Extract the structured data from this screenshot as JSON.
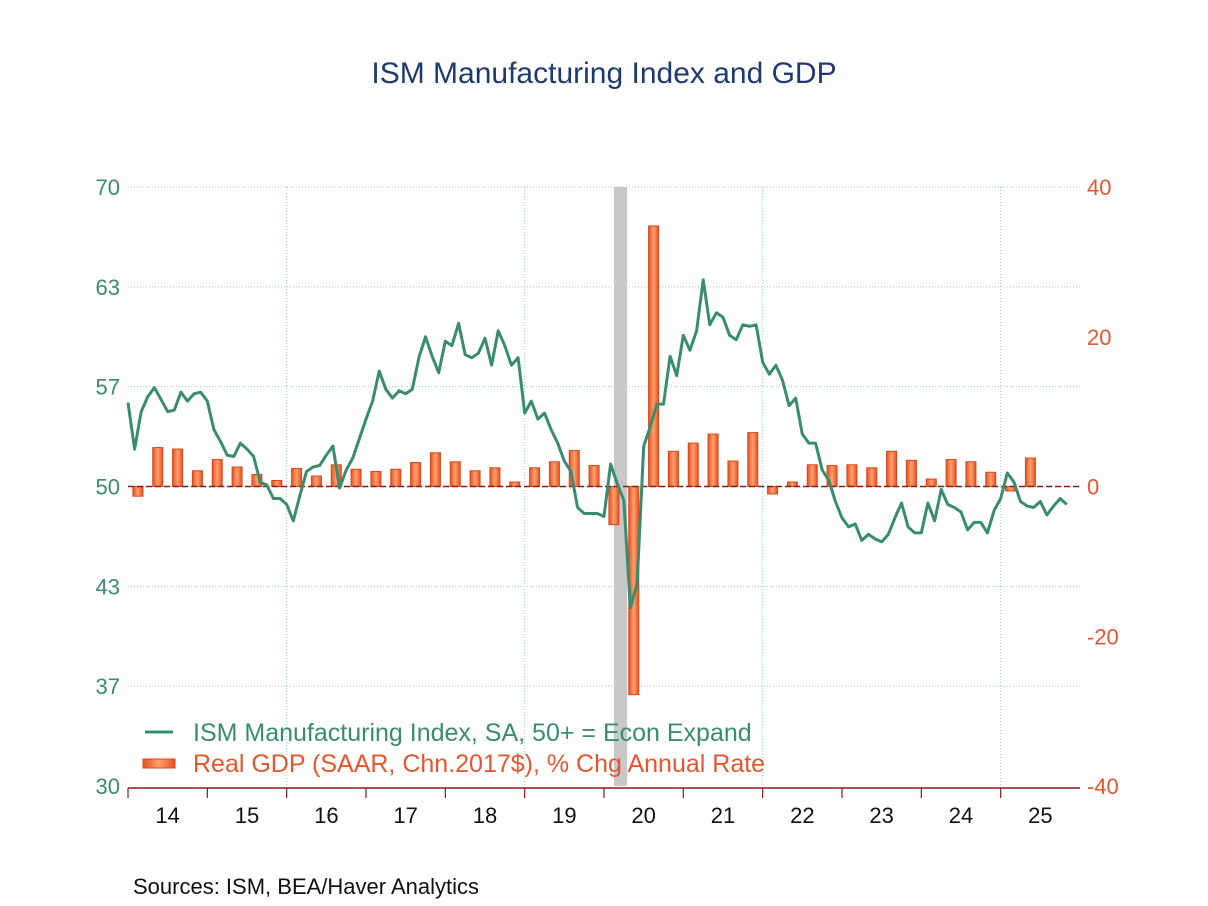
{
  "chart_data": {
    "type": "line+bar",
    "title": "ISM Manufacturing Index and GDP",
    "source": "Sources:   ISM, BEA/Haver Analytics",
    "x_axis": {
      "range": [
        "2014-01",
        "2025-12"
      ],
      "tick_labels": [
        "14",
        "15",
        "16",
        "17",
        "18",
        "19",
        "20",
        "21",
        "22",
        "23",
        "24",
        "25"
      ]
    },
    "y_left": {
      "range": [
        30,
        70
      ],
      "tick_labels": [
        "70",
        "63",
        "57",
        "50",
        "43",
        "37",
        "30"
      ],
      "color": "#3a8c6e"
    },
    "y_right": {
      "range": [
        -40,
        40
      ],
      "tick_labels": [
        "40",
        "20",
        "0",
        "-20",
        "-40"
      ],
      "color": "#e4572e"
    },
    "grid": true,
    "recession": {
      "start": "2020-02",
      "end": "2020-04",
      "color": "#c8c8c8"
    },
    "reference_line": {
      "value_left": 50,
      "value_right": 0,
      "color": "#8b1a1a"
    },
    "legend_placement": "bottom-left",
    "series": [
      {
        "name": "ISM Manufacturing Index, SA, 50+ = Econ Expand",
        "type": "line",
        "axis": "left",
        "color": "#3a8c6e",
        "frequency": "monthly",
        "x_start": "2013-12",
        "values": [
          55.6,
          52.5,
          55.0,
          56.0,
          56.6,
          55.8,
          55.0,
          55.1,
          56.3,
          55.7,
          56.2,
          56.3,
          55.7,
          53.8,
          53.0,
          52.1,
          52.0,
          52.9,
          52.5,
          52.0,
          50.3,
          50.1,
          49.2,
          49.2,
          48.8,
          47.7,
          49.4,
          51.0,
          51.3,
          51.4,
          52.1,
          52.7,
          49.9,
          51.1,
          51.9,
          53.2,
          54.5,
          55.7,
          57.7,
          56.5,
          55.9,
          56.4,
          56.2,
          56.5,
          58.6,
          60.0,
          58.7,
          57.6,
          59.7,
          59.4,
          60.9,
          58.8,
          58.6,
          58.9,
          59.9,
          58.1,
          60.4,
          59.4,
          58.1,
          58.6,
          54.9,
          55.7,
          54.5,
          54.9,
          53.8,
          52.9,
          51.7,
          51.0,
          48.6,
          48.2,
          48.2,
          48.2,
          48.0,
          51.5,
          50.2,
          49.1,
          41.9,
          43.5,
          52.7,
          54.0,
          55.5,
          55.5,
          58.7,
          57.4,
          60.1,
          59.1,
          60.4,
          63.8,
          60.8,
          61.6,
          61.3,
          60.1,
          59.8,
          60.8,
          60.7,
          60.8,
          58.3,
          57.5,
          58.1,
          57.1,
          55.4,
          55.9,
          53.5,
          52.9,
          52.9,
          51.1,
          50.4,
          49.0,
          47.9,
          47.3,
          47.5,
          46.4,
          46.8,
          46.5,
          46.3,
          46.8,
          47.9,
          48.9,
          47.3,
          46.9,
          46.9,
          48.9,
          47.7,
          49.8,
          48.8,
          48.6,
          48.3,
          47.1,
          47.6,
          47.6,
          46.9,
          48.4,
          49.2,
          50.9,
          50.3,
          49.0,
          48.7,
          48.6,
          49.0,
          48.1,
          48.7,
          49.2,
          48.8
        ]
      },
      {
        "name": "Real GDP (SAAR, Chn.2017$), % Chg Annual Rate",
        "type": "bar",
        "axis": "right",
        "color": "#e4572e",
        "frequency": "quarterly",
        "x_start": "2014-Q1",
        "values": [
          -1.3,
          5.2,
          5.0,
          2.1,
          3.6,
          2.6,
          1.6,
          0.8,
          2.4,
          1.4,
          2.9,
          2.3,
          2.0,
          2.3,
          3.2,
          4.5,
          3.3,
          2.1,
          2.5,
          0.6,
          2.5,
          3.3,
          4.8,
          2.8,
          -5.1,
          -27.8,
          34.8,
          4.7,
          5.8,
          7.0,
          3.4,
          7.2,
          -1.0,
          0.6,
          2.9,
          2.8,
          2.9,
          2.5,
          4.7,
          3.5,
          1.0,
          3.6,
          3.3,
          1.9,
          -0.6,
          3.8
        ]
      }
    ]
  }
}
